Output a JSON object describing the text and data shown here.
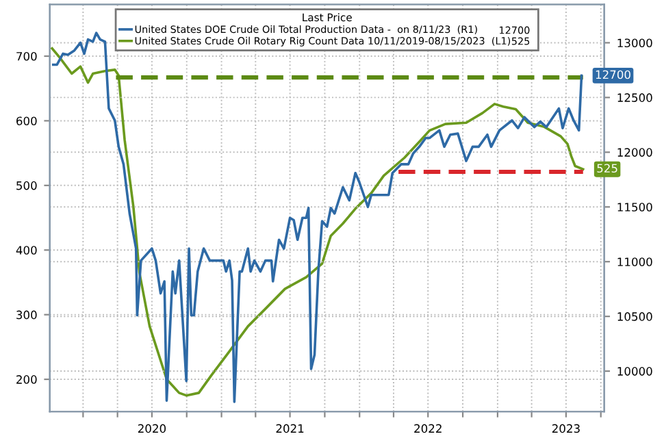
{
  "chart_data": {
    "type": "line",
    "legend_title": "Last Price",
    "legend": "top",
    "grid": true,
    "xlim": [
      "2019-10-05",
      "2023-10-10"
    ],
    "xticks": [
      {
        "value": "2020-01-01",
        "label": null
      },
      {
        "value": "2020-04-01",
        "label": null
      },
      {
        "value": "2020-07-01",
        "label": "2020"
      },
      {
        "value": "2020-10-01",
        "label": null
      },
      {
        "value": "2021-01-01",
        "label": null
      },
      {
        "value": "2021-04-01",
        "label": null
      },
      {
        "value": "2021-07-01",
        "label": "2021"
      },
      {
        "value": "2021-10-01",
        "label": null
      },
      {
        "value": "2022-01-01",
        "label": null
      },
      {
        "value": "2022-04-01",
        "label": null
      },
      {
        "value": "2022-07-01",
        "label": "2022"
      },
      {
        "value": "2022-10-01",
        "label": null
      },
      {
        "value": "2023-01-01",
        "label": null
      },
      {
        "value": "2023-04-01",
        "label": null
      },
      {
        "value": "2023-07-01",
        "label": "2023"
      },
      {
        "value": "2023-10-01",
        "label": null
      }
    ],
    "ylim": [
      150,
      780
    ],
    "yticks": [
      200,
      300,
      400,
      500,
      600,
      700
    ],
    "y2lim": [
      9630,
      13350
    ],
    "y2ticks": [
      10000,
      10500,
      11000,
      11500,
      12000,
      12500,
      13000
    ],
    "series": [
      {
        "name": "United States DOE Crude Oil Total Production Data -  on 8/11/23  (R1)",
        "color": "#2e6aa6",
        "axis": "y2",
        "x": [
          "2019-10-14",
          "2019-10-24",
          "2019-11-09",
          "2019-11-22",
          "2019-12-09",
          "2019-12-25",
          "2020-01-04",
          "2020-01-14",
          "2020-01-27",
          "2020-02-05",
          "2020-02-15",
          "2020-02-28",
          "2020-03-09",
          "2020-03-25",
          "2020-04-04",
          "2020-04-17",
          "2020-05-03",
          "2020-05-20",
          "2020-05-23",
          "2020-06-02",
          "2020-07-01",
          "2020-07-11",
          "2020-07-24",
          "2020-08-03",
          "2020-08-09",
          "2020-08-25",
          "2020-09-01",
          "2020-09-11",
          "2020-09-30",
          "2020-10-07",
          "2020-10-13",
          "2020-10-20",
          "2020-10-30",
          "2020-11-15",
          "2020-12-01",
          "2021-01-06",
          "2021-01-13",
          "2021-01-22",
          "2021-01-29",
          "2021-02-04",
          "2021-02-18",
          "2021-02-24",
          "2021-03-12",
          "2021-03-19",
          "2021-03-29",
          "2021-04-14",
          "2021-04-27",
          "2021-05-13",
          "2021-05-17",
          "2021-06-02",
          "2021-06-15",
          "2021-07-01",
          "2021-07-11",
          "2021-07-21",
          "2021-08-03",
          "2021-08-13",
          "2021-08-19",
          "2021-08-26",
          "2021-09-04",
          "2021-09-14",
          "2021-09-24",
          "2021-10-07",
          "2021-10-17",
          "2021-10-27",
          "2021-11-18",
          "2021-12-05",
          "2021-12-21",
          "2021-12-31",
          "2022-01-23",
          "2022-02-01",
          "2022-03-19",
          "2022-03-29",
          "2022-04-21",
          "2022-05-10",
          "2022-05-23",
          "2022-06-08",
          "2022-06-25",
          "2022-07-05",
          "2022-07-31",
          "2022-08-13",
          "2022-08-29",
          "2022-09-18",
          "2022-10-10",
          "2022-10-27",
          "2022-11-12",
          "2022-12-05",
          "2022-12-15",
          "2023-01-06",
          "2023-02-08",
          "2023-02-24",
          "2023-03-13",
          "2023-04-08",
          "2023-04-24",
          "2023-05-10",
          "2023-06-12",
          "2023-06-22",
          "2023-07-08",
          "2023-07-21",
          "2023-08-04",
          "2023-08-11"
        ],
        "values": [
          12800,
          12800,
          12900,
          12890,
          12930,
          13000,
          12900,
          13030,
          13010,
          13090,
          13030,
          13010,
          12400,
          12290,
          12050,
          11890,
          11440,
          11120,
          10510,
          11010,
          11120,
          11010,
          10710,
          10820,
          9730,
          10910,
          10710,
          11010,
          9910,
          11120,
          10510,
          10510,
          10910,
          11120,
          11010,
          11010,
          10910,
          11010,
          10830,
          9720,
          10910,
          10910,
          11120,
          10910,
          11010,
          10910,
          11010,
          11010,
          10820,
          11200,
          11120,
          11400,
          11380,
          11200,
          11400,
          11400,
          11490,
          10020,
          10150,
          10910,
          11370,
          11320,
          11490,
          11440,
          11680,
          11560,
          11810,
          11730,
          11500,
          11610,
          11610,
          11810,
          11890,
          11890,
          11990,
          12050,
          12130,
          12130,
          12200,
          12050,
          12160,
          12170,
          11920,
          12050,
          12050,
          12160,
          12050,
          12200,
          12290,
          12220,
          12320,
          12230,
          12280,
          12230,
          12400,
          12220,
          12400,
          12290,
          12200,
          12700
        ],
        "value_labels": [
          null,
          null,
          null,
          null,
          null,
          null,
          null,
          null,
          null,
          null,
          null,
          null,
          null,
          null,
          null,
          null,
          null,
          null,
          null,
          null,
          null,
          null,
          null,
          null,
          null,
          null,
          null,
          null,
          null,
          null,
          null,
          null,
          null,
          null,
          null,
          null,
          null,
          null,
          null,
          null,
          null,
          null,
          null,
          null,
          null,
          null,
          null,
          null,
          null,
          null,
          null,
          null,
          null,
          null,
          null,
          null,
          null,
          null,
          null,
          null,
          null,
          null,
          null,
          null,
          null,
          null,
          null,
          null,
          null,
          null,
          null,
          null,
          null,
          null,
          null,
          null,
          null,
          null,
          null,
          null,
          null,
          null,
          null,
          null,
          null,
          null,
          null,
          null,
          null,
          null,
          null,
          null,
          null,
          null,
          null,
          null,
          null,
          null,
          null,
          "12700"
        ]
      },
      {
        "name": "United States Crude Oil Rotary Rig Count Data 10/11/2019-08/15/2023  (L1)",
        "color": "#6b9a1e",
        "axis": "y",
        "x": [
          "2019-10-11",
          "2019-10-31",
          "2019-12-02",
          "2019-12-25",
          "2020-01-14",
          "2020-01-27",
          "2020-02-28",
          "2020-03-25",
          "2020-04-04",
          "2020-04-20",
          "2020-05-13",
          "2020-05-29",
          "2020-06-25",
          "2020-08-09",
          "2020-09-11",
          "2020-09-30",
          "2020-11-02",
          "2020-12-05",
          "2021-01-19",
          "2021-03-12",
          "2021-04-27",
          "2021-06-18",
          "2021-08-13",
          "2021-09-24",
          "2021-10-17",
          "2021-11-18",
          "2021-12-21",
          "2022-02-01",
          "2022-03-06",
          "2022-04-30",
          "2022-06-12",
          "2022-07-05",
          "2022-08-16",
          "2022-10-10",
          "2022-11-22",
          "2022-12-24",
          "2023-01-16",
          "2023-02-18",
          "2023-03-22",
          "2023-05-03",
          "2023-06-17",
          "2023-07-05",
          "2023-07-15",
          "2023-07-25",
          "2023-08-15"
        ],
        "values": [
          712,
          698,
          673,
          684,
          659,
          673,
          677,
          679,
          670,
          570,
          467,
          365,
          282,
          200,
          179,
          175,
          179,
          206,
          241,
          282,
          309,
          340,
          358,
          379,
          422,
          441,
          464,
          488,
          515,
          543,
          570,
          585,
          595,
          597,
          612,
          626,
          622,
          618,
          597,
          591,
          576,
          564,
          545,
          530,
          525
        ],
        "value_labels": [
          null,
          null,
          null,
          null,
          null,
          null,
          null,
          null,
          null,
          null,
          null,
          null,
          null,
          null,
          null,
          null,
          null,
          null,
          null,
          null,
          null,
          null,
          null,
          null,
          null,
          null,
          null,
          null,
          null,
          null,
          null,
          null,
          null,
          null,
          null,
          null,
          null,
          null,
          null,
          null,
          null,
          null,
          null,
          null,
          "525"
        ]
      },
      {
        "color": "#5c8a14",
        "axis": "y",
        "line_style": "dashed",
        "x": [
          "2020-03-28",
          "2023-08-15"
        ],
        "values": [
          667,
          667
        ]
      },
      {
        "color": "#d9262b",
        "axis": "y",
        "line_style": "dashed",
        "x": [
          "2022-04-14",
          "2023-08-15"
        ],
        "values": [
          521,
          521
        ]
      }
    ]
  }
}
